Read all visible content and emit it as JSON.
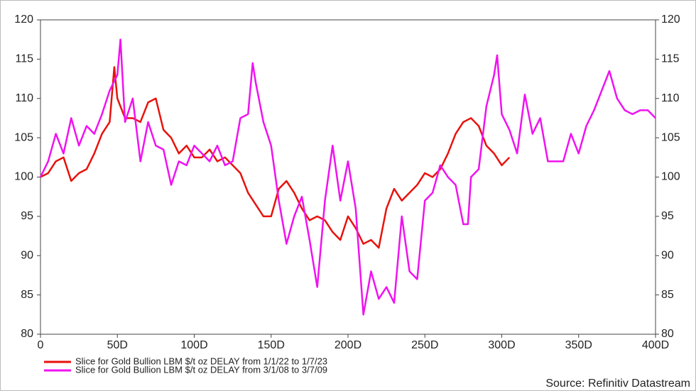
{
  "chart_data": {
    "type": "line",
    "xlim": [
      0,
      400
    ],
    "xticks": [
      0,
      {
        "value": 50,
        "label": "50D"
      },
      {
        "value": 100,
        "label": "100D"
      },
      {
        "value": 150,
        "label": "150D"
      },
      {
        "value": 200,
        "label": "200D"
      },
      {
        "value": 250,
        "label": "250D"
      },
      {
        "value": 300,
        "label": "300D"
      },
      {
        "value": 350,
        "label": "350D"
      },
      {
        "value": 400,
        "label": "400D"
      }
    ],
    "ylim": [
      80,
      120
    ],
    "yticks": [
      80,
      85,
      90,
      95,
      100,
      105,
      110,
      115,
      120
    ],
    "y2lim": [
      80,
      120
    ],
    "y2ticks": [
      80,
      85,
      90,
      95,
      100,
      105,
      110,
      115,
      120
    ],
    "source": "Source: Refinitiv Datastream",
    "series": [
      {
        "name": "Slice for Gold Bullion LBM $/t oz DELAY from 1/1/22 to 1/7/23",
        "color": "#e8120c",
        "x": [
          0,
          5,
          10,
          15,
          20,
          25,
          30,
          35,
          40,
          45,
          48,
          50,
          55,
          60,
          65,
          70,
          75,
          80,
          85,
          90,
          95,
          100,
          105,
          110,
          115,
          120,
          125,
          130,
          135,
          140,
          145,
          150,
          155,
          160,
          165,
          170,
          175,
          180,
          185,
          190,
          195,
          200,
          205,
          210,
          215,
          220,
          225,
          230,
          235,
          240,
          245,
          250,
          255,
          260,
          265,
          270,
          275,
          280,
          285,
          290,
          295,
          300,
          305
        ],
        "values": [
          100,
          100.5,
          102,
          102.5,
          99.5,
          100.5,
          101,
          103,
          105.5,
          107,
          114,
          110,
          107.5,
          107.5,
          107,
          109.5,
          110,
          106,
          105,
          103,
          104,
          102.5,
          102.5,
          103.5,
          102,
          102.5,
          101.5,
          100.5,
          98,
          96.5,
          95,
          95,
          98.5,
          99.5,
          98,
          96,
          94.5,
          95,
          94.5,
          93,
          92,
          95,
          93.5,
          91.5,
          92,
          91,
          96,
          98.5,
          97,
          98,
          99,
          100.5,
          100,
          101,
          103,
          105.5,
          107,
          107.5,
          106.5,
          104,
          103,
          101.5,
          102.5
        ]
      },
      {
        "name": "Slice for Gold Bullion LBM $/t oz DELAY from 3/1/08 to 3/7/09",
        "color": "#f012f0",
        "x": [
          0,
          5,
          10,
          15,
          20,
          25,
          30,
          35,
          40,
          45,
          50,
          52,
          55,
          60,
          65,
          70,
          75,
          80,
          85,
          90,
          95,
          100,
          105,
          110,
          115,
          120,
          125,
          130,
          135,
          138,
          140,
          145,
          150,
          155,
          160,
          165,
          170,
          175,
          180,
          185,
          190,
          195,
          200,
          205,
          210,
          215,
          220,
          225,
          230,
          235,
          240,
          245,
          250,
          255,
          260,
          265,
          270,
          275,
          278,
          280,
          285,
          290,
          295,
          297,
          300,
          305,
          310,
          315,
          320,
          325,
          330,
          335,
          340,
          345,
          350,
          355,
          360,
          365,
          370,
          375,
          380,
          385,
          390,
          395,
          400
        ],
        "values": [
          100,
          102,
          105.5,
          103,
          107.5,
          104,
          106.5,
          105.5,
          108,
          111,
          113,
          117.5,
          107,
          110,
          102,
          107,
          104,
          103.5,
          99,
          102,
          101.5,
          104,
          103,
          102,
          104,
          101.5,
          102,
          107.5,
          108,
          114.5,
          112,
          107,
          104,
          97,
          91.5,
          95,
          97.5,
          92,
          86,
          97,
          104,
          97,
          102,
          96,
          82.5,
          88,
          84.5,
          86,
          84,
          95,
          88,
          87,
          97,
          98,
          101.5,
          100,
          99,
          94,
          94,
          100,
          101,
          109,
          113,
          115.5,
          108,
          106,
          103,
          110.5,
          105.5,
          107.5,
          102,
          102,
          102,
          105.5,
          103,
          106.5,
          108.5,
          111,
          113.5,
          110,
          108.5,
          108,
          108.5,
          108.5,
          107.5
        ]
      }
    ]
  }
}
